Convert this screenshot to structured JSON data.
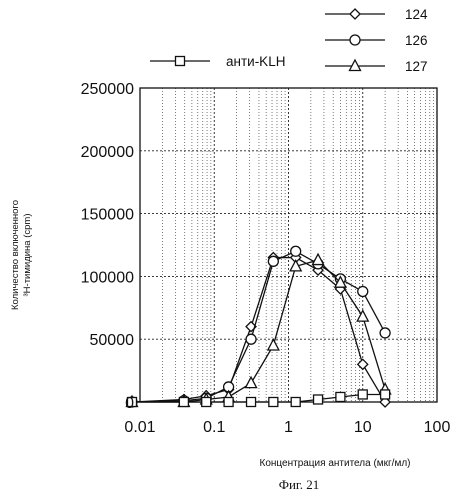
{
  "chart_data": {
    "type": "line",
    "x_scale": "log",
    "xlabel": "Концентрация антитела (мкг/мл)",
    "ylabel_line1": "Количество включенного",
    "ylabel_line2": "³H-тимидина (cpm)",
    "caption": "Фиг. 21",
    "xlim": [
      0.01,
      100
    ],
    "ylim": [
      0,
      250000
    ],
    "xticks": [
      {
        "value": 0.01,
        "label": "0.01"
      },
      {
        "value": 0.1,
        "label": "0.1"
      },
      {
        "value": 1,
        "label": "1"
      },
      {
        "value": 10,
        "label": "10"
      },
      {
        "value": 100,
        "label": "100"
      }
    ],
    "yticks": [
      {
        "value": 0,
        "label": "0"
      },
      {
        "value": 50000,
        "label": "50000"
      },
      {
        "value": 100000,
        "label": "100000"
      },
      {
        "value": 150000,
        "label": "150000"
      },
      {
        "value": 200000,
        "label": "200000"
      },
      {
        "value": 250000,
        "label": "250000"
      }
    ],
    "grid": "dotted",
    "legend_position": "top",
    "series": [
      {
        "name": "124",
        "marker": "diamond",
        "x": [
          0.0078,
          0.039,
          0.078,
          0.156,
          0.313,
          0.625,
          1.25,
          2.5,
          5,
          10,
          20
        ],
        "y": [
          0,
          2000,
          5000,
          10000,
          60000,
          115000,
          115000,
          105000,
          90000,
          30000,
          0
        ]
      },
      {
        "name": "126",
        "marker": "circle",
        "x": [
          0.0078,
          0.039,
          0.078,
          0.156,
          0.313,
          0.625,
          1.25,
          2.5,
          5,
          10,
          20
        ],
        "y": [
          0,
          1000,
          3000,
          12000,
          50000,
          112000,
          120000,
          110000,
          98000,
          88000,
          55000
        ]
      },
      {
        "name": "127",
        "marker": "triangle",
        "x": [
          0.0078,
          0.039,
          0.078,
          0.156,
          0.313,
          0.625,
          1.25,
          2.5,
          5,
          10,
          20
        ],
        "y": [
          0,
          0,
          2000,
          4000,
          15000,
          45000,
          108000,
          113000,
          95000,
          68000,
          10000
        ]
      },
      {
        "name": "анти-KLH",
        "marker": "square",
        "x": [
          0.0078,
          0.039,
          0.078,
          0.156,
          0.313,
          0.625,
          1.25,
          2.5,
          5,
          10,
          20
        ],
        "y": [
          0,
          0,
          0,
          0,
          0,
          0,
          0,
          2000,
          4000,
          6000,
          6000
        ]
      }
    ]
  }
}
